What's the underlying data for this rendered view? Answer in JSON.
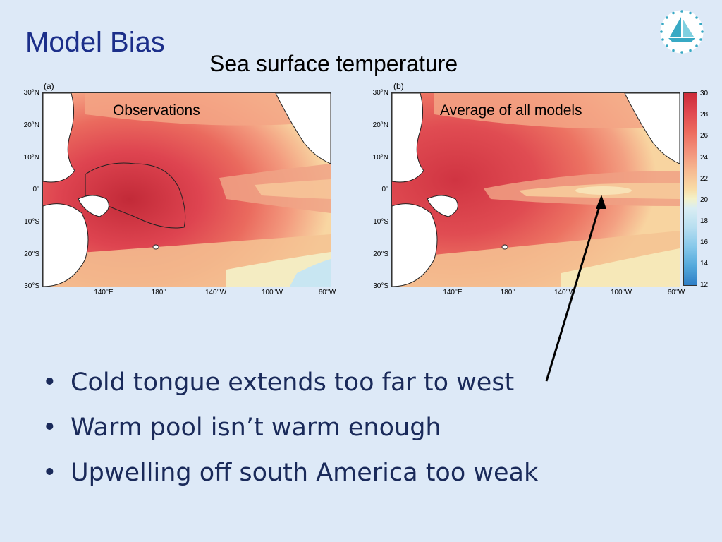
{
  "slide": {
    "title": "Model Bias",
    "subtitle": "Sea surface temperature"
  },
  "panels": [
    {
      "label": "(a)",
      "map_title": "Observations",
      "y_ticks": [
        "30°N",
        "20°N",
        "10°N",
        "0°",
        "10°S",
        "20°S",
        "30°S"
      ],
      "x_ticks": [
        "140°E",
        "180°",
        "140°W",
        "100°W",
        "60°W"
      ]
    },
    {
      "label": "(b)",
      "map_title": "Average of all models",
      "y_ticks": [
        "30°N",
        "20°N",
        "10°N",
        "0°",
        "10°S",
        "20°S",
        "30°S"
      ],
      "x_ticks": [
        "140°E",
        "180°",
        "140°W",
        "100°W",
        "60°W"
      ]
    }
  ],
  "colorbar": {
    "ticks": [
      "30",
      "28",
      "26",
      "24",
      "22",
      "20",
      "18",
      "16",
      "14",
      "12"
    ],
    "colors": {
      "warm": "#cc2b3a",
      "mid": "#f8dca6",
      "cool": "#2e7ec6"
    }
  },
  "bullets": [
    "Cold tongue extends too far to west",
    "Warm pool isn’t warm enough",
    "Upwelling off south America too weak"
  ],
  "colors": {
    "title": "#1c2f8a",
    "background": "#dde9f7",
    "rule": "#6cc3d6"
  },
  "logo": {
    "icon": "sailboat-logo-icon"
  }
}
